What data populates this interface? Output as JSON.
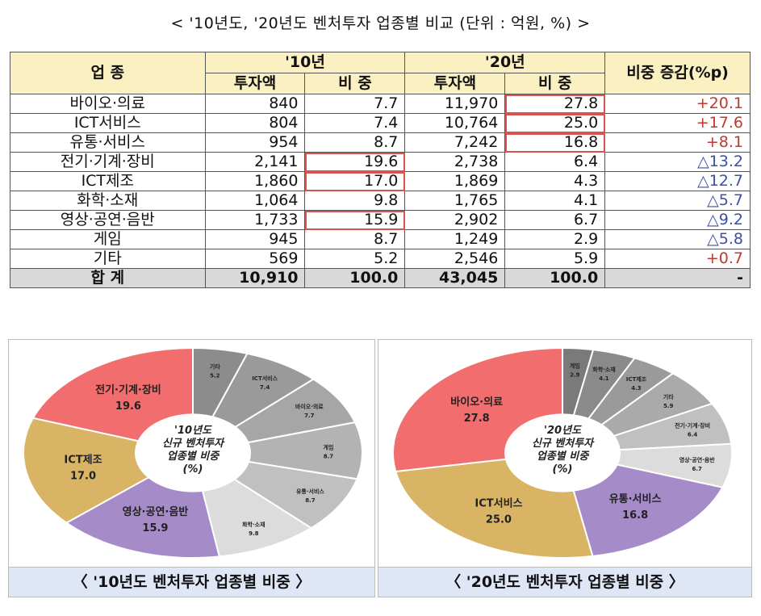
{
  "title": "< '10년도, '20년도 벤처투자 업종별 비교 (단위 : 억원, %) >",
  "table": {
    "header": {
      "industry": "업 종",
      "y2010": "'10년",
      "y2020": "'20년",
      "amount": "투자액",
      "share": "비 중",
      "change": "비중 증감(%p)"
    },
    "rows": [
      {
        "name": "바이오·의료",
        "a10": "840",
        "s10": "7.7",
        "a20": "11,970",
        "s20": "27.8",
        "chg": "+20.1",
        "sign": "pos",
        "hl10": false,
        "hl20": true
      },
      {
        "name": "ICT서비스",
        "a10": "804",
        "s10": "7.4",
        "a20": "10,764",
        "s20": "25.0",
        "chg": "+17.6",
        "sign": "pos",
        "hl10": false,
        "hl20": true
      },
      {
        "name": "유통·서비스",
        "a10": "954",
        "s10": "8.7",
        "a20": "7,242",
        "s20": "16.8",
        "chg": "+8.1",
        "sign": "pos",
        "hl10": false,
        "hl20": true
      },
      {
        "name": "전기·기계·장비",
        "a10": "2,141",
        "s10": "19.6",
        "a20": "2,738",
        "s20": "6.4",
        "chg": "△13.2",
        "sign": "neg",
        "hl10": true,
        "hl20": false
      },
      {
        "name": "ICT제조",
        "a10": "1,860",
        "s10": "17.0",
        "a20": "1,869",
        "s20": "4.3",
        "chg": "△12.7",
        "sign": "neg",
        "hl10": true,
        "hl20": false
      },
      {
        "name": "화학·소재",
        "a10": "1,064",
        "s10": "9.8",
        "a20": "1,765",
        "s20": "4.1",
        "chg": "△5.7",
        "sign": "neg",
        "hl10": false,
        "hl20": false
      },
      {
        "name": "영상·공연·음반",
        "a10": "1,733",
        "s10": "15.9",
        "a20": "2,902",
        "s20": "6.7",
        "chg": "△9.2",
        "sign": "neg",
        "hl10": true,
        "hl20": false
      },
      {
        "name": "게임",
        "a10": "945",
        "s10": "8.7",
        "a20": "1,249",
        "s20": "2.9",
        "chg": "△5.8",
        "sign": "neg",
        "hl10": false,
        "hl20": false
      },
      {
        "name": "기타",
        "a10": "569",
        "s10": "5.2",
        "a20": "2,546",
        "s20": "5.9",
        "chg": "+0.7",
        "sign": "pos",
        "hl10": false,
        "hl20": false
      }
    ],
    "total": {
      "name": "합 계",
      "a10": "10,910",
      "s10": "100.0",
      "a20": "43,045",
      "s20": "100.0",
      "chg": "-"
    }
  },
  "charts": [
    {
      "center": [
        "'10년도",
        "신규 벤처투자",
        "업종별 비중",
        "(%)"
      ],
      "caption": "〈 '10년도 벤처투자 업종별 비중 〉",
      "slices": [
        {
          "name": "기타",
          "value": 5.2,
          "color": "#8c8c8c"
        },
        {
          "name": "ICT서비스",
          "value": 7.4,
          "color": "#9a9a9a"
        },
        {
          "name": "바이오·의료",
          "value": 7.7,
          "color": "#a6a6a6"
        },
        {
          "name": "게임",
          "value": 8.7,
          "color": "#b3b3b3"
        },
        {
          "name": "유통·서비스",
          "value": 8.7,
          "color": "#c0c0c0"
        },
        {
          "name": "화학·소재",
          "value": 9.8,
          "color": "#dcdcdc"
        },
        {
          "name": "영상·공연·음반",
          "value": 15.9,
          "color": "#a68bc9"
        },
        {
          "name": "ICT제조",
          "value": 17.0,
          "color": "#d9b464"
        },
        {
          "name": "전기·기계·장비",
          "value": 19.6,
          "color": "#f26d6d"
        }
      ]
    },
    {
      "center": [
        "'20년도",
        "신규 벤처투자",
        "업종별 비중",
        "(%)"
      ],
      "caption": "〈 '20년도 벤처투자 업종별 비중 〉",
      "slices": [
        {
          "name": "게임",
          "value": 2.9,
          "color": "#7a7a7a"
        },
        {
          "name": "화학·소재",
          "value": 4.1,
          "color": "#8a8a8a"
        },
        {
          "name": "ICT제조",
          "value": 4.3,
          "color": "#9a9a9a"
        },
        {
          "name": "기타",
          "value": 5.9,
          "color": "#aaaaaa"
        },
        {
          "name": "전기·기계·장비",
          "value": 6.4,
          "color": "#c0c0c0"
        },
        {
          "name": "영상·공연·음반",
          "value": 6.7,
          "color": "#dcdcdc"
        },
        {
          "name": "유통·서비스",
          "value": 16.8,
          "color": "#a68bc9"
        },
        {
          "name": "ICT서비스",
          "value": 25.0,
          "color": "#d9b464"
        },
        {
          "name": "바이오·의료",
          "value": 27.8,
          "color": "#f26d6d"
        }
      ]
    }
  ]
}
